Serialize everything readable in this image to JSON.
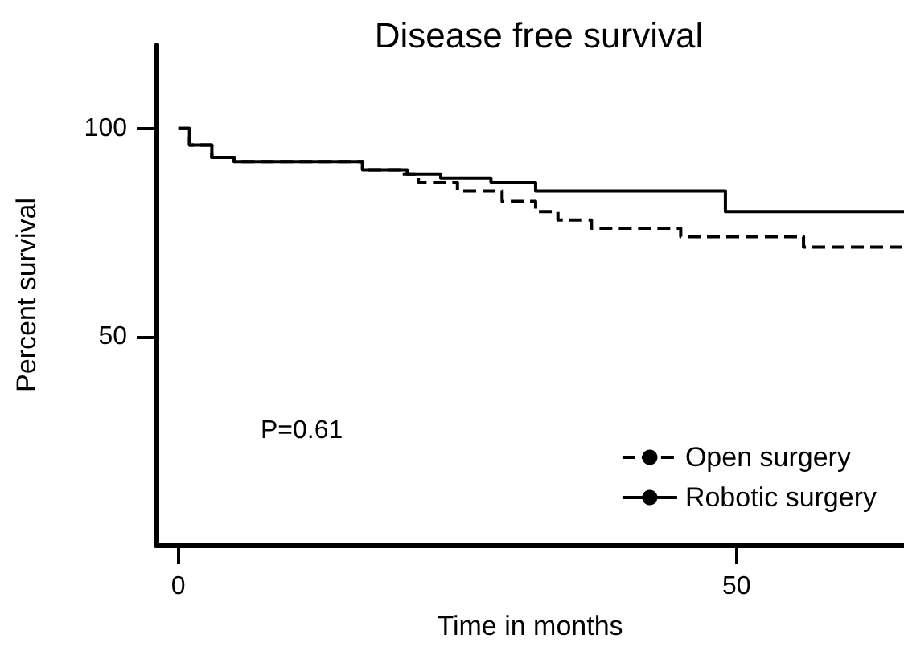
{
  "chart_data": {
    "type": "step",
    "title": "Disease free survival",
    "xlabel": "Time in months",
    "ylabel": "Percent survival",
    "annotations": [
      "P=0.61"
    ],
    "series": [
      {
        "name": "Open surgery",
        "color": "#000000",
        "line_style": "dashed",
        "x": [
          0,
          1,
          3,
          5,
          16.5,
          20,
          21.5,
          25,
          29,
          32,
          34,
          37,
          45,
          56,
          65
        ],
        "values": [
          100,
          96,
          93,
          92,
          90,
          89,
          87,
          85,
          82.5,
          80,
          78,
          76,
          74,
          71.5,
          71.5
        ]
      },
      {
        "name": "Robotic surgery",
        "color": "#000000",
        "line_style": "solid",
        "x": [
          0,
          1,
          3,
          5,
          16.5,
          20.5,
          23.5,
          28,
          32,
          49,
          65
        ],
        "values": [
          100,
          96,
          93,
          92,
          90,
          89,
          88,
          87,
          85,
          80,
          80
        ]
      }
    ],
    "xlim": [
      -2,
      65
    ],
    "xticks": [
      0,
      50
    ],
    "ylim": [
      0,
      120
    ],
    "yticks": [
      50,
      100
    ],
    "grid": false,
    "legend": "bottom right"
  }
}
